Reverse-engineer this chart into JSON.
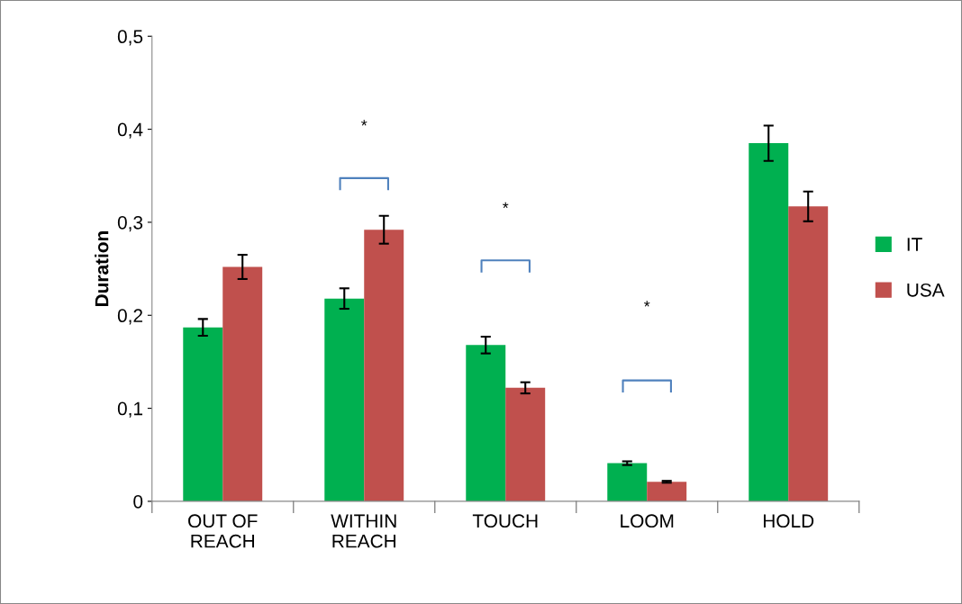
{
  "chart_data": {
    "type": "bar",
    "ylabel": "Duration",
    "categories": [
      "OUT OF\nREACH",
      "WITHIN\nREACH",
      "TOUCH",
      "LOOM",
      "HOLD"
    ],
    "series": [
      {
        "name": "IT",
        "color": "#00b050",
        "values": [
          0.187,
          0.218,
          0.168,
          0.041,
          0.385
        ],
        "errors": [
          0.009,
          0.011,
          0.009,
          0.002,
          0.019
        ]
      },
      {
        "name": "USA",
        "color": "#c0504d",
        "values": [
          0.252,
          0.292,
          0.122,
          0.021,
          0.317
        ],
        "errors": [
          0.013,
          0.015,
          0.006,
          0.001,
          0.016
        ]
      }
    ],
    "ylim": [
      0,
      0.5
    ],
    "yticks": [
      0,
      {
        "value": 0.1,
        "label": "0,1"
      },
      {
        "value": 0.2,
        "label": "0,2"
      },
      {
        "value": 0.3,
        "label": "0,3"
      },
      {
        "value": 0.4,
        "label": "0,4"
      },
      {
        "value": 0.5,
        "label": "0,5"
      }
    ],
    "grid": false,
    "legend": "right",
    "annotations": [
      "*",
      "*",
      "*"
    ]
  }
}
